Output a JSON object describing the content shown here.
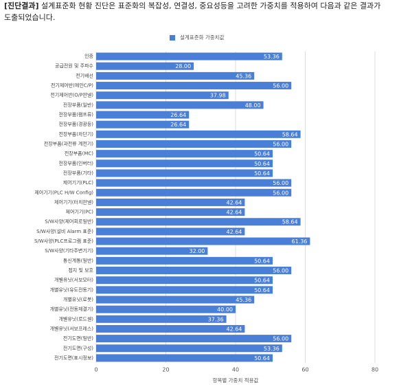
{
  "header": {
    "lead": "[진단결과]",
    "line1": "설계표준화 현황 진단은 표준화의 복잡성, 연결성, 중요성등을 고려한 가중치를 적용하여 다음과 같은 결과가",
    "line2": "도출되었습니다."
  },
  "chart_data": {
    "type": "bar",
    "orientation": "horizontal",
    "x_label": "항목별 가중치 적용값",
    "categories": [
      "인증",
      "공급전원 및 주파수",
      "전기배선",
      "전기제어반(메인C/P)",
      "전기제어반(O/P판넬)",
      "전장부품(일반)",
      "전장부품(램프류)",
      "전장부품(경광등)",
      "전장부품(차단기)",
      "전장부품(과전류 계전기)",
      "전장부품(MC)",
      "전장부품(인버터)",
      "전장부품(기타)",
      "제어기기(PLC)",
      "제어기기(PLC H/W Config)",
      "제어기기(터치판넬)",
      "제어기기(PC)",
      "S/W사양(제어회로일반)",
      "S/W사양(설비 Alarm 표준)",
      "S/W사양(PLC프로그램 표준)",
      "S/W사양(기타주변기기)",
      "통신계통(일반)",
      "접지 및 보호",
      "개별유닛(서보모터)",
      "개별유닛(유도전동기)",
      "개별유닛(로봇)",
      "개별유닛(전동체결기)",
      "개별유닛(로드셀)",
      "개별유닛(서보프레스)",
      "전기도면(일반)",
      "전기도면(구성)",
      "전기도면(표시정보)"
    ],
    "series": [
      {
        "name": "설계표준화 가중치값",
        "color": "#4a7fd8",
        "values": [
          53.36,
          28,
          45.36,
          56,
          37.98,
          48,
          26.64,
          26.64,
          58.64,
          56,
          50.64,
          50.64,
          50.64,
          56,
          56,
          42.64,
          42.64,
          58.64,
          42.64,
          61.36,
          32,
          50.64,
          56,
          50.64,
          50.64,
          45.36,
          40,
          37.36,
          42.64,
          56,
          53.36,
          50.64
        ],
        "value_labels": [
          "53.36",
          "28.00",
          "45.36",
          "56.00",
          "37.98",
          "48.00",
          "26.64",
          "26.64",
          "58.64",
          "56.00",
          "50.64",
          "50.64",
          "50.64",
          "56.00",
          "56.00",
          "42.64",
          "42.64",
          "58.64",
          "42.64",
          "61.36",
          "32.00",
          "50.64",
          "56.00",
          "50.64",
          "50.64",
          "45.36",
          "40.00",
          "37.36",
          "42.64",
          "56.00",
          "53.36",
          "50.64"
        ]
      }
    ],
    "xlim": [
      0,
      80
    ],
    "xticks": [
      0,
      20,
      40,
      60,
      80
    ],
    "grid": true,
    "legend": "top"
  }
}
